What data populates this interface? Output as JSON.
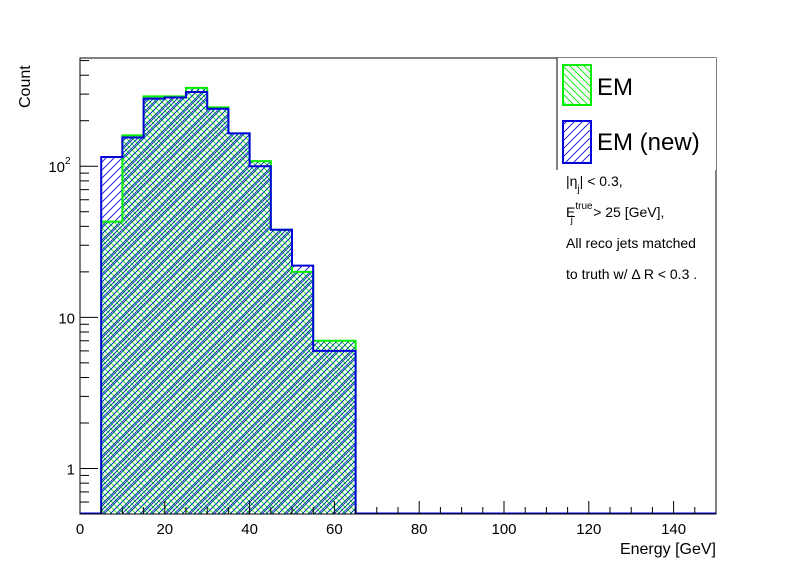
{
  "chart_data": {
    "type": "histogram",
    "xlabel": "Energy [GeV]",
    "ylabel": "Count",
    "xlim": [
      0,
      150
    ],
    "ylim": [
      0.5,
      520
    ],
    "yscale": "log",
    "bin_edges": [
      5,
      10,
      15,
      20,
      25,
      30,
      35,
      40,
      45,
      50,
      55,
      60,
      65
    ],
    "x_ticks": [
      "0",
      "20",
      "40",
      "60",
      "80",
      "100",
      "120",
      "140"
    ],
    "series": [
      {
        "name": "EM",
        "color": "#00ee00",
        "hatch": "cross",
        "values": [
          43,
          160,
          290,
          290,
          330,
          245,
          165,
          108,
          38,
          20,
          7,
          7
        ]
      },
      {
        "name": "EM (new)",
        "color": "#0000dd",
        "hatch": "diagonal",
        "values": [
          115,
          155,
          280,
          285,
          310,
          240,
          165,
          100,
          38,
          22,
          6,
          6
        ]
      }
    ],
    "legend": {
      "position": "top-right"
    },
    "annotations": [
      {
        "pre": "|η",
        "sub": "j",
        "sup": "",
        "post": "| < 0.3,"
      },
      {
        "pre": "E",
        "sub": "j",
        "sup": "true",
        "post": " > 25 [GeV],"
      },
      {
        "pre": "All reco jets matched",
        "sub": "",
        "sup": "",
        "post": ""
      },
      {
        "pre": "to truth w/ Δ R < 0.3 .",
        "sub": "",
        "sup": "",
        "post": ""
      }
    ]
  }
}
